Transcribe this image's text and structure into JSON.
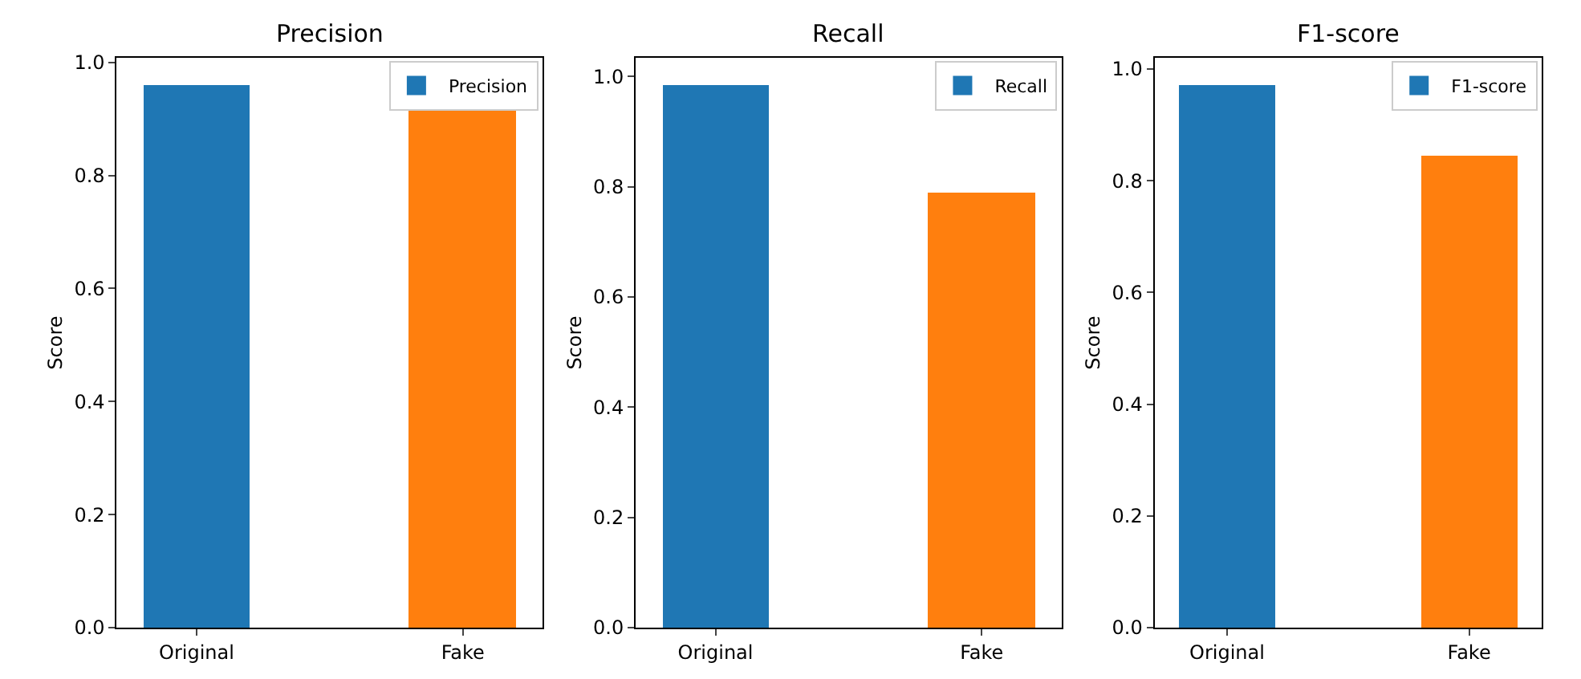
{
  "chart_data": [
    {
      "type": "bar",
      "title": "Precision",
      "ylabel": "Score",
      "categories": [
        "Original",
        "Fake"
      ],
      "series": [
        {
          "name": "Precision",
          "colors": [
            "#1f77b4",
            "#ff7f0e"
          ],
          "values": [
            0.96,
            0.914
          ]
        }
      ],
      "ylim": [
        0,
        1.008
      ],
      "yticks": [
        {
          "value": 0,
          "label": "0.0"
        },
        {
          "value": 0.2,
          "label": "0.2"
        },
        {
          "value": 0.4,
          "label": "0.4"
        },
        {
          "value": 0.6,
          "label": "0.6"
        },
        {
          "value": 0.8,
          "label": "0.8"
        },
        {
          "value": 1,
          "label": "1.0"
        }
      ],
      "legend": "top right"
    },
    {
      "type": "bar",
      "title": "Recall",
      "ylabel": "Score",
      "categories": [
        "Original",
        "Fake"
      ],
      "series": [
        {
          "name": "Recall",
          "colors": [
            "#1f77b4",
            "#ff7f0e"
          ],
          "values": [
            0.985,
            0.788
          ]
        }
      ],
      "ylim": [
        0,
        1.034
      ],
      "yticks": [
        {
          "value": 0,
          "label": "0.0"
        },
        {
          "value": 0.2,
          "label": "0.2"
        },
        {
          "value": 0.4,
          "label": "0.4"
        },
        {
          "value": 0.6,
          "label": "0.6"
        },
        {
          "value": 0.8,
          "label": "0.8"
        },
        {
          "value": 1,
          "label": "1.0"
        }
      ],
      "legend": "top right"
    },
    {
      "type": "bar",
      "title": "F1-score",
      "ylabel": "Score",
      "categories": [
        "Original",
        "Fake"
      ],
      "series": [
        {
          "name": "F1-score",
          "colors": [
            "#1f77b4",
            "#ff7f0e"
          ],
          "values": [
            0.971,
            0.845
          ]
        }
      ],
      "ylim": [
        0,
        1.02
      ],
      "yticks": [
        {
          "value": 0,
          "label": "0.0"
        },
        {
          "value": 0.2,
          "label": "0.2"
        },
        {
          "value": 0.4,
          "label": "0.4"
        },
        {
          "value": 0.6,
          "label": "0.6"
        },
        {
          "value": 0.8,
          "label": "0.8"
        },
        {
          "value": 1,
          "label": "1.0"
        }
      ],
      "legend": "top right"
    }
  ]
}
